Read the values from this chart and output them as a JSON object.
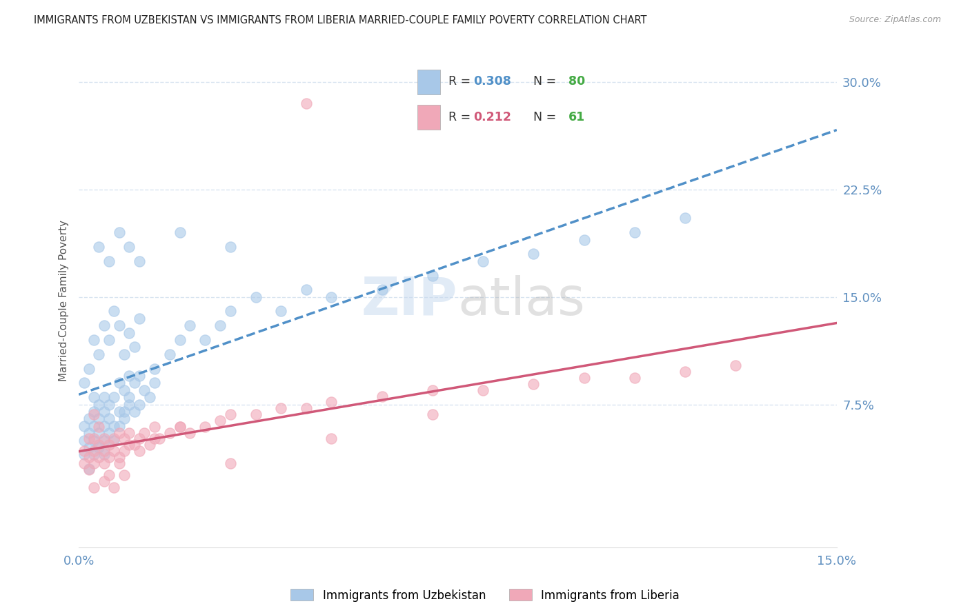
{
  "title": "IMMIGRANTS FROM UZBEKISTAN VS IMMIGRANTS FROM LIBERIA MARRIED-COUPLE FAMILY POVERTY CORRELATION CHART",
  "source": "Source: ZipAtlas.com",
  "ylabel": "Married-Couple Family Poverty",
  "xmin": 0.0,
  "xmax": 0.15,
  "ymin": -0.025,
  "ymax": 0.32,
  "watermark": "ZIPatlas",
  "legend_r1": "0.308",
  "legend_n1": "80",
  "legend_r2": "0.212",
  "legend_n2": "61",
  "legend_label1": "Immigrants from Uzbekistan",
  "legend_label2": "Immigrants from Liberia",
  "color_uzbekistan": "#a8c8e8",
  "color_liberia": "#f0a8b8",
  "color_trend_uzbekistan": "#5090c8",
  "color_trend_liberia": "#d05878",
  "color_r_uzbekistan": "#5090c8",
  "color_r_liberia": "#d05878",
  "color_n": "#44aa44",
  "axis_label_color": "#6090c0",
  "grid_color": "#d8e4f0",
  "yticks": [
    0.075,
    0.15,
    0.225,
    0.3
  ],
  "ytick_labels": [
    "7.5%",
    "15.0%",
    "22.5%",
    "30.0%"
  ],
  "xticks": [
    0.0,
    0.15
  ],
  "xtick_labels": [
    "0.0%",
    "15.0%"
  ]
}
